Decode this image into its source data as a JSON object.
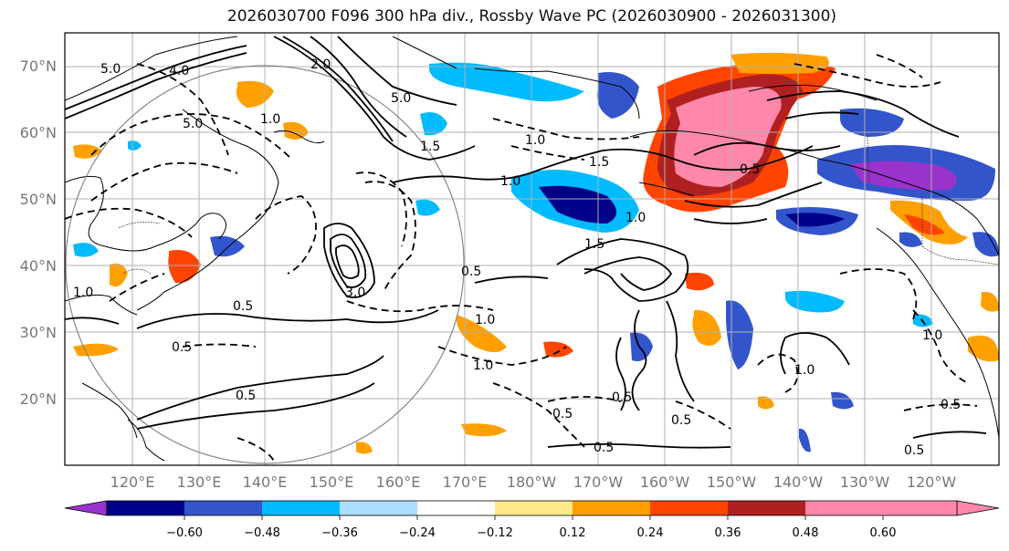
{
  "title": "2026030700 F096 300 hPa div., Rossby Wave PC (2026030900 - 2026031300)",
  "lat_labels": [
    "70°N",
    "60°N",
    "50°N",
    "40°N",
    "30°N",
    "20°N"
  ],
  "lon_labels": [
    "120°E",
    "130°E",
    "140°E",
    "150°E",
    "160°E",
    "170°E",
    "180°W",
    "170°W",
    "160°W",
    "150°W",
    "140°W",
    "130°W",
    "120°W"
  ],
  "colorbar": {
    "colors": [
      "#9933cc",
      "#000088",
      "#3355cc",
      "#00bbff",
      "#aaddff",
      "#ffffff",
      "#ffe88a",
      "#ffa000",
      "#ff4400",
      "#b02020",
      "#ff88aa"
    ],
    "ticks": [
      "−0.60",
      "−0.48",
      "−0.36",
      "−0.24",
      "−0.12",
      "0.12",
      "0.24",
      "0.36",
      "0.48",
      "0.60"
    ]
  },
  "contour_labels": [
    "5.0",
    "4.0",
    "2.0",
    "1.0",
    "5.0",
    "1.5",
    "1.0",
    "0.5",
    "1.0",
    "1.5",
    "5.0",
    "3.0",
    "1.0",
    "0.5",
    "0.5",
    "0.5",
    "1.0",
    "0.5",
    "1.0",
    "0.5",
    "0.5",
    "1.0",
    "1.0",
    "0.5",
    "0.5",
    "0.5",
    "0.5",
    "1.0",
    "1.5"
  ]
}
